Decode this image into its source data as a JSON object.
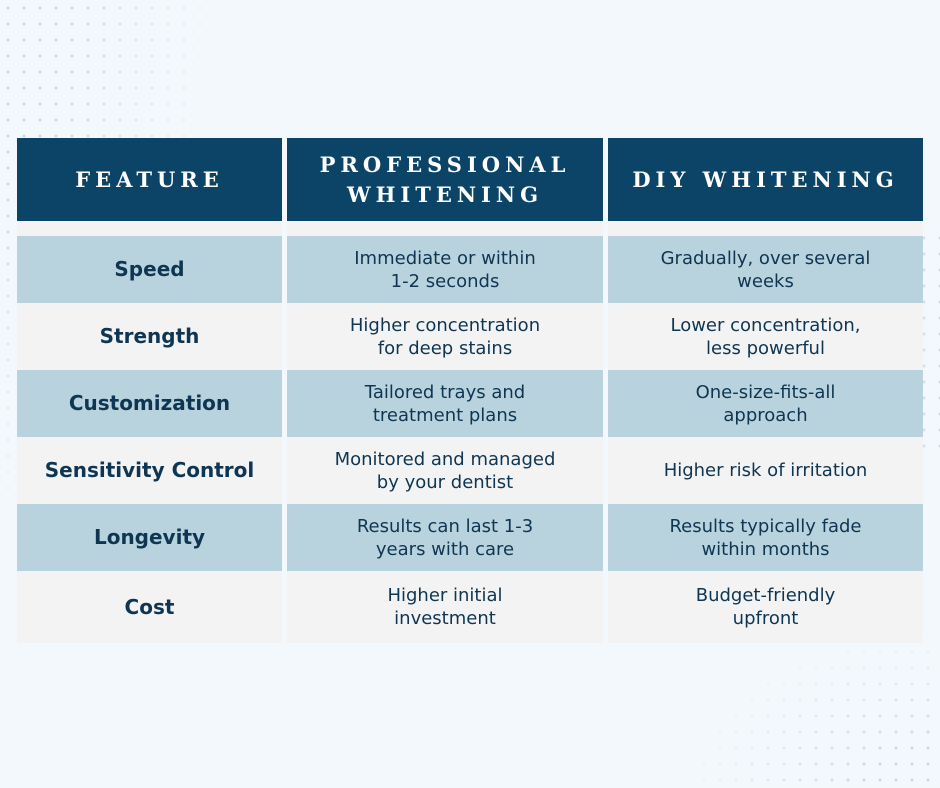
{
  "table": {
    "headers": [
      "FEATURE",
      "PROFESSIONAL WHITENING",
      "DIY WHITENING"
    ],
    "rows": [
      {
        "feature": "Speed",
        "professional": "Immediate or within 1-2 seconds",
        "diy": "Gradually, over several weeks"
      },
      {
        "feature": "Strength",
        "professional": "Higher concentration for deep stains",
        "diy": "Lower concentration, less powerful"
      },
      {
        "feature": "Customization",
        "professional": "Tailored trays and treatment plans",
        "diy": "One-size-fits-all approach"
      },
      {
        "feature": "Sensitivity Control",
        "professional": "Monitored and managed by your dentist",
        "diy": "Higher risk of irritation"
      },
      {
        "feature": "Longevity",
        "professional": "Results can last 1-3 years with care",
        "diy": "Results typically fade within months"
      },
      {
        "feature": "Cost",
        "professional": "Higher initial investment",
        "diy": "Budget-friendly upfront"
      }
    ]
  },
  "colors": {
    "header_bg": "#0b4467",
    "row_alt_bg": "#b9d3de",
    "row_plain_bg": "#f3f3f3",
    "text": "#0e3552",
    "page_bg": "#f3f8fc"
  }
}
